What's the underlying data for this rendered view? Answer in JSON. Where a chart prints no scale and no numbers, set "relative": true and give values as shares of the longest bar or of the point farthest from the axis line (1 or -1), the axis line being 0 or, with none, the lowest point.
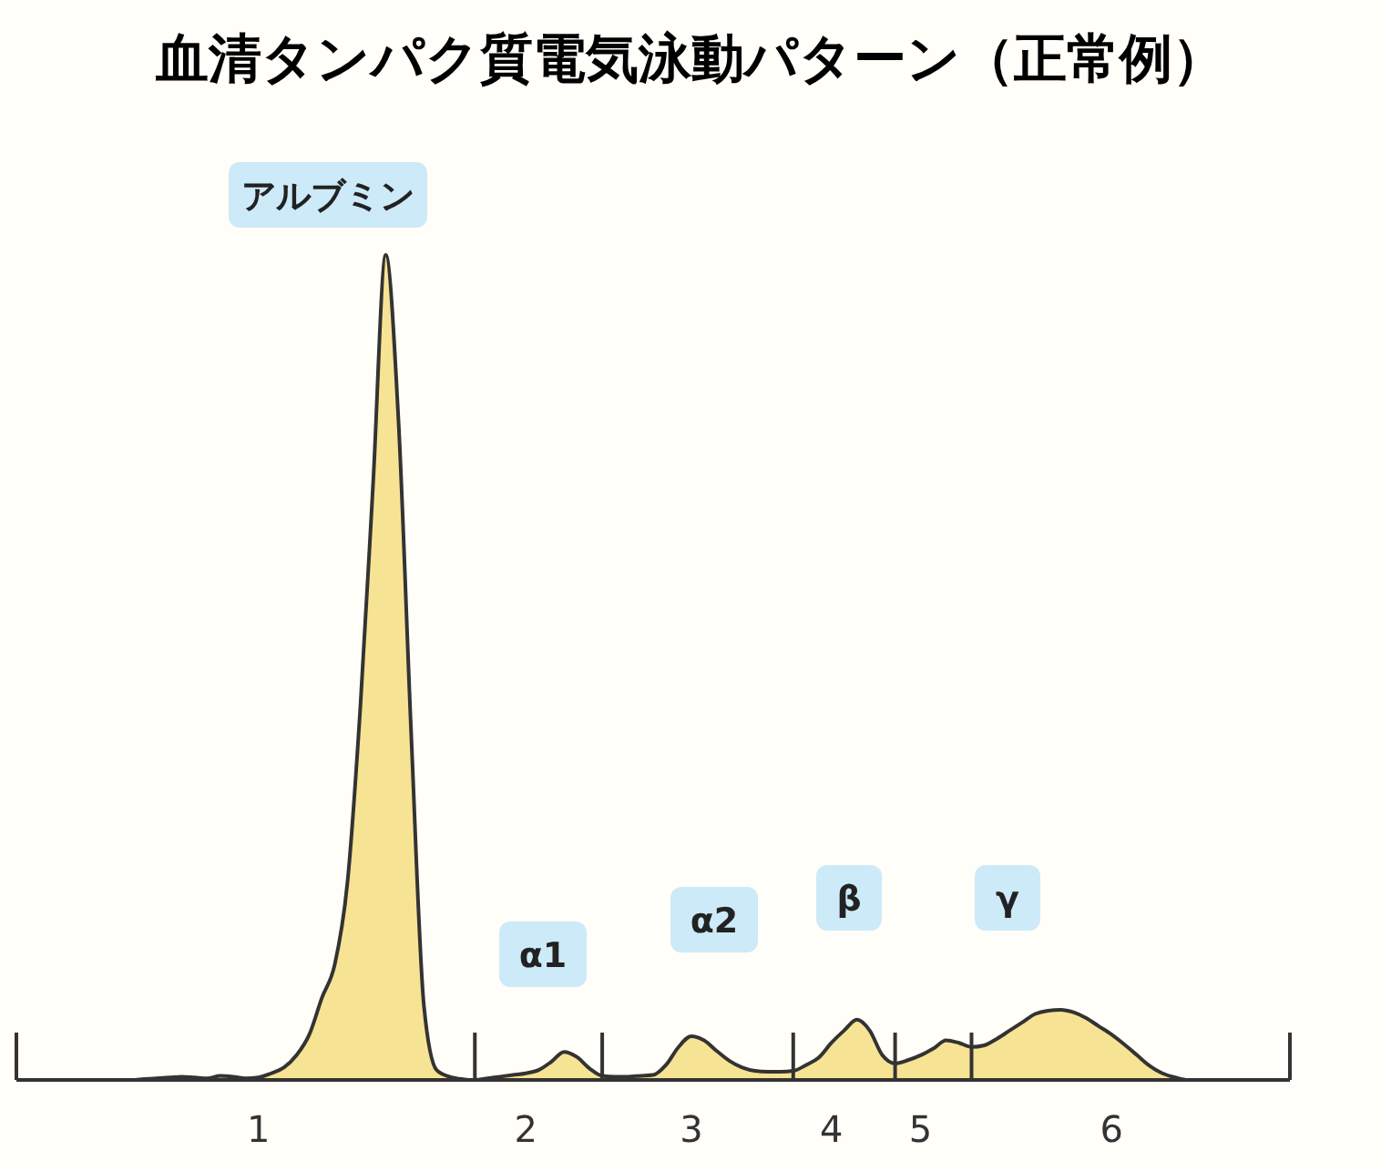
{
  "chart_data": {
    "type": "area",
    "title": "血清タンパク質電気泳動パターン（正常例）",
    "relative": true,
    "categories": [
      null,
      null,
      null,
      null,
      null,
      null,
      null,
      null,
      null,
      null,
      null,
      null,
      null,
      null,
      null,
      null,
      null,
      null,
      null,
      "1",
      null,
      null,
      null,
      null,
      null,
      null,
      null,
      null,
      null,
      null,
      null,
      null,
      null,
      null,
      null,
      null,
      null,
      null,
      null,
      null,
      "2",
      null,
      null,
      null,
      null,
      null,
      null,
      null,
      null,
      null,
      null,
      null,
      null,
      "3",
      null,
      null,
      null,
      null,
      null,
      null,
      null,
      null,
      null,
      null,
      "4",
      null,
      null,
      null,
      null,
      null,
      null,
      "5",
      null,
      null,
      null,
      null,
      null,
      null,
      null,
      null,
      null,
      null,
      null,
      null,
      null,
      null,
      "6",
      null,
      null,
      null,
      null,
      null,
      null,
      null,
      null,
      null,
      null,
      null,
      null,
      null,
      null
    ],
    "series": [
      {
        "color": "#f7e394",
        "values": [
          0,
          0,
          0,
          0,
          0,
          0,
          0,
          0,
          0,
          0,
          0.001,
          0.002,
          0.003,
          0.004,
          0.003,
          0.002,
          0.005,
          0.004,
          0.002,
          0.003,
          0.008,
          0.015,
          0.03,
          0.055,
          0.1,
          0.14,
          0.24,
          0.45,
          0.72,
          1,
          0.8,
          0.42,
          0.09,
          0.012,
          0.004,
          0.001,
          0,
          0.002,
          0.004,
          0.006,
          0.008,
          0.012,
          0.022,
          0.034,
          0.028,
          0.014,
          0.005,
          0.004,
          0.004,
          0.005,
          0.006,
          0.018,
          0.04,
          0.053,
          0.048,
          0.035,
          0.023,
          0.015,
          0.011,
          0.01,
          0.01,
          0.011,
          0.018,
          0.027,
          0.045,
          0.06,
          0.073,
          0.06,
          0.03,
          0.02,
          0.024,
          0.03,
          0.038,
          0.048,
          0.045,
          0.04,
          0.042,
          0.05,
          0.06,
          0.07,
          0.08,
          0.084,
          0.085,
          0.082,
          0.075,
          0.065,
          0.055,
          0.043,
          0.03,
          0.017,
          0.008,
          0.003,
          0,
          0,
          0,
          0,
          0,
          0,
          0,
          0,
          0
        ]
      }
    ],
    "annotations": [
      "アルブミン",
      "α1",
      "α2",
      "β",
      "γ"
    ]
  }
}
